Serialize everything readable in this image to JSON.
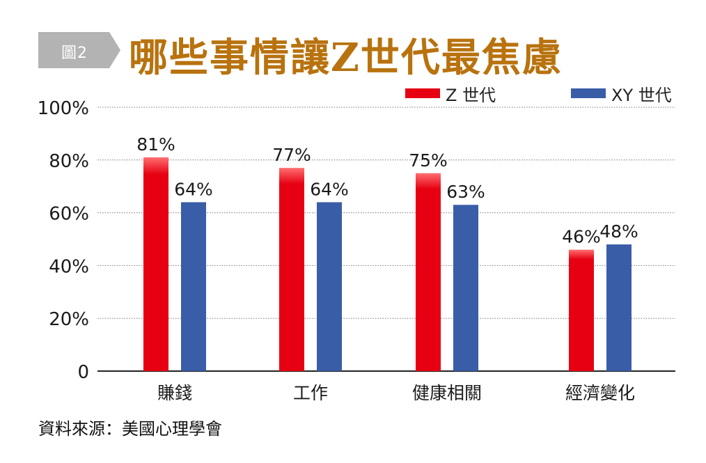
{
  "figure": {
    "tag": "圖2",
    "title": "哪些事情讓Z世代最焦慮",
    "source": "資料來源：美國心理學會"
  },
  "colors": {
    "tag_bg": "#b3b3b3",
    "title": "#b8720e",
    "z_series": "#e60012",
    "xy_series": "#3a5da8"
  },
  "chart_data": {
    "type": "bar",
    "categories": [
      "賺錢",
      "工作",
      "健康相關",
      "經濟變化"
    ],
    "series": [
      {
        "name": "Z 世代",
        "values": [
          81,
          77,
          75,
          46
        ],
        "labels": [
          "81%",
          "77%",
          "75%",
          "46%"
        ]
      },
      {
        "name": "XY 世代",
        "values": [
          64,
          64,
          63,
          48
        ],
        "labels": [
          "64%",
          "64%",
          "63%",
          "48%"
        ]
      }
    ],
    "yticks": [
      "0",
      "20%",
      "40%",
      "60%",
      "80%",
      "100%"
    ],
    "ylim": [
      0,
      100
    ],
    "grid": true,
    "legend": "top-right"
  }
}
